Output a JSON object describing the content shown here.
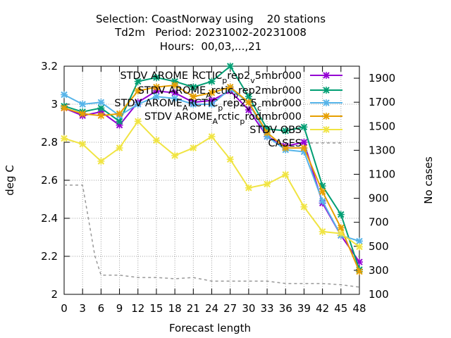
{
  "chart_data": {
    "type": "line",
    "title_lines": [
      "Selection: CoastNorway using    20 stations",
      "Td2m   Period: 20231002-20231008",
      "Hours:  00,03,...,21"
    ],
    "xlabel": "Forecast length",
    "ylabel": "deg C",
    "y2label": "No cases",
    "x": [
      0,
      3,
      6,
      9,
      12,
      15,
      18,
      21,
      24,
      27,
      30,
      33,
      36,
      39,
      42,
      45,
      48
    ],
    "xlim": [
      0,
      48
    ],
    "ylim": [
      2.0,
      3.2
    ],
    "y2lim": [
      100,
      2000
    ],
    "yticks": [
      "2",
      "2.2",
      "2.4",
      "2.6",
      "2.8",
      "3",
      "3.2"
    ],
    "y2ticks": [
      "100",
      "300",
      "500",
      "700",
      "900",
      "1100",
      "1300",
      "1500",
      "1700",
      "1900"
    ],
    "grid": true,
    "legend_position": "top-right",
    "series": [
      {
        "name": "STDV AROME_ARCTIC_prep2_v_5mbr000",
        "color": "#9400d3",
        "marker": "x",
        "axis": "y",
        "values": [
          2.98,
          2.94,
          2.96,
          2.89,
          3.01,
          3.07,
          3.06,
          3.01,
          3.02,
          3.07,
          2.97,
          2.83,
          2.78,
          2.8,
          2.48,
          2.31,
          2.17
        ]
      },
      {
        "name": "STDV AROME_Arctic_prep2mbr000",
        "color": "#009e73",
        "marker": "x",
        "axis": "y",
        "values": [
          2.99,
          2.96,
          2.98,
          2.91,
          3.12,
          3.14,
          3.12,
          3.09,
          3.12,
          3.2,
          3.04,
          2.87,
          2.86,
          2.88,
          2.57,
          2.42,
          2.13
        ]
      },
      {
        "name": "STDV AROME_ARCTIC_prep2_v_5_cmbr000",
        "color": "#56b4e9",
        "marker": "x",
        "axis": "y",
        "values": [
          3.05,
          3.0,
          3.01,
          2.94,
          3.0,
          3.04,
          3.03,
          3.0,
          3.0,
          3.08,
          3.01,
          2.83,
          2.76,
          2.75,
          2.49,
          2.31,
          2.28
        ]
      },
      {
        "name": "STDV AROME_Arctic_prodmbr000",
        "color": "#e69f00",
        "marker": "x",
        "axis": "y",
        "values": [
          2.98,
          2.95,
          2.94,
          2.95,
          3.07,
          3.09,
          3.1,
          3.04,
          3.06,
          3.09,
          3.01,
          2.85,
          2.77,
          2.77,
          2.54,
          2.35,
          2.12
        ]
      },
      {
        "name": "STDV OBS",
        "color": "#f0e442",
        "marker": "x",
        "axis": "y",
        "values": [
          2.82,
          2.79,
          2.7,
          2.77,
          2.91,
          2.81,
          2.73,
          2.77,
          2.83,
          2.71,
          2.56,
          2.58,
          2.63,
          2.46,
          2.33,
          2.32,
          2.25
        ]
      },
      {
        "name": "CASES",
        "color": "#999999",
        "dashed": true,
        "axis": "y2",
        "x": [
          0,
          3,
          5,
          6,
          9,
          12,
          15,
          18,
          21,
          24,
          27,
          30,
          33,
          36,
          39,
          42,
          45,
          48
        ],
        "values": [
          1010,
          1010,
          420,
          260,
          260,
          240,
          240,
          230,
          240,
          210,
          210,
          210,
          210,
          190,
          190,
          190,
          180,
          160
        ]
      }
    ]
  },
  "legend_display": [
    {
      "text": "STDV AROME",
      "sub": "_",
      "rest": "RCTIC",
      "sub2": "p",
      "tail": "rep2",
      "sub3": "v",
      "tail2": "5mbr000"
    },
    {
      "text": "STDV AROME",
      "sub": "A",
      "rest": "rctic",
      "sub2": "p",
      "tail": "rep2mbr000"
    },
    {
      "text": "STDV AROME",
      "sub": "A",
      "rest": "RCTIC",
      "sub2": "p",
      "tail": "rep2",
      "sub3": "v",
      "tail2": "5",
      "sub4": "c",
      "tail3": "mbr000"
    },
    {
      "text": "STDV AROME",
      "sub": "A",
      "rest": "rctic",
      "sub2": "p",
      "tail": "rodmbr000"
    },
    {
      "text": "STDV OBS"
    },
    {
      "text": "CASES"
    }
  ]
}
